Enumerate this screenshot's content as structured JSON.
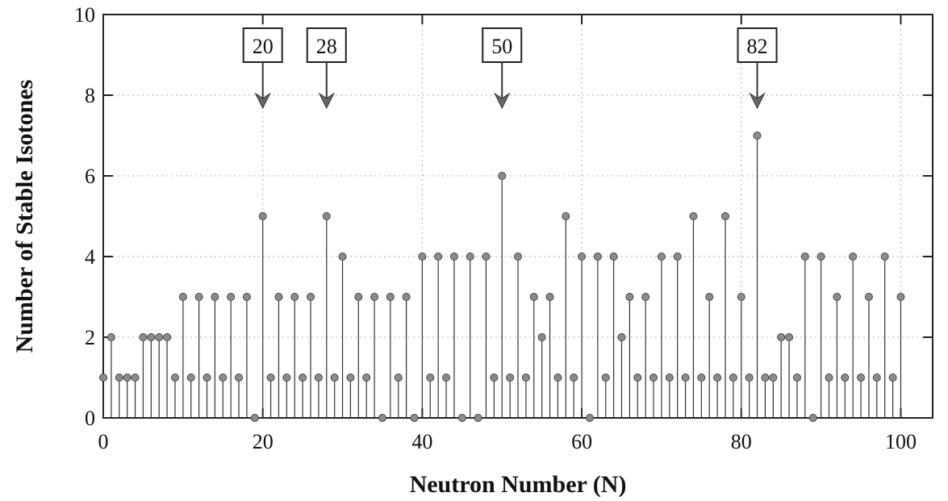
{
  "chart_data": {
    "type": "scatter",
    "style": "stem",
    "xlabel": "Neutron Number (N)",
    "ylabel": "Number of Stable Isotones",
    "xlim": [
      0,
      104
    ],
    "ylim": [
      0,
      10
    ],
    "x_ticks": [
      0,
      20,
      40,
      60,
      80,
      100
    ],
    "x_tick_labels": [
      "0",
      "20",
      "40",
      "60",
      "80",
      "100"
    ],
    "y_ticks": [
      0,
      2,
      4,
      6,
      8,
      10
    ],
    "y_tick_labels": [
      "0",
      "2",
      "4",
      "6",
      "8",
      "10"
    ],
    "grid": true,
    "annotations": [
      {
        "label": "20",
        "x": 20
      },
      {
        "label": "28",
        "x": 28
      },
      {
        "label": "50",
        "x": 50
      },
      {
        "label": "82",
        "x": 82
      }
    ],
    "x": [
      0,
      1,
      2,
      3,
      4,
      5,
      6,
      7,
      8,
      9,
      10,
      11,
      12,
      13,
      14,
      15,
      16,
      17,
      18,
      19,
      20,
      21,
      22,
      23,
      24,
      25,
      26,
      27,
      28,
      29,
      30,
      31,
      32,
      33,
      34,
      35,
      36,
      37,
      38,
      39,
      40,
      41,
      42,
      43,
      44,
      45,
      46,
      47,
      48,
      49,
      50,
      51,
      52,
      53,
      54,
      55,
      56,
      57,
      58,
      59,
      60,
      61,
      62,
      63,
      64,
      65,
      66,
      67,
      68,
      69,
      70,
      71,
      72,
      73,
      74,
      75,
      76,
      77,
      78,
      79,
      80,
      81,
      82,
      83,
      84,
      85,
      86,
      87,
      88,
      89,
      90,
      91,
      92,
      93,
      94,
      95,
      96,
      97,
      98,
      99,
      100
    ],
    "values": [
      1,
      2,
      1,
      1,
      1,
      2,
      2,
      2,
      2,
      1,
      3,
      1,
      3,
      1,
      3,
      1,
      3,
      1,
      3,
      0,
      5,
      1,
      3,
      1,
      3,
      1,
      3,
      1,
      5,
      1,
      4,
      1,
      3,
      1,
      3,
      0,
      3,
      1,
      3,
      0,
      4,
      1,
      4,
      1,
      4,
      0,
      4,
      0,
      4,
      1,
      6,
      1,
      4,
      1,
      3,
      2,
      3,
      1,
      5,
      1,
      4,
      0,
      4,
      1,
      4,
      2,
      3,
      1,
      3,
      1,
      4,
      1,
      4,
      1,
      5,
      1,
      3,
      1,
      5,
      1,
      3,
      1,
      7,
      1,
      1,
      2,
      2,
      1,
      4,
      0,
      4,
      1,
      3,
      1,
      4,
      1,
      3,
      1,
      4,
      1,
      3
    ]
  },
  "style": {
    "marker_color": "#8c8c8c",
    "line_color": "#333333",
    "grid_color": "#b0b0b0"
  }
}
